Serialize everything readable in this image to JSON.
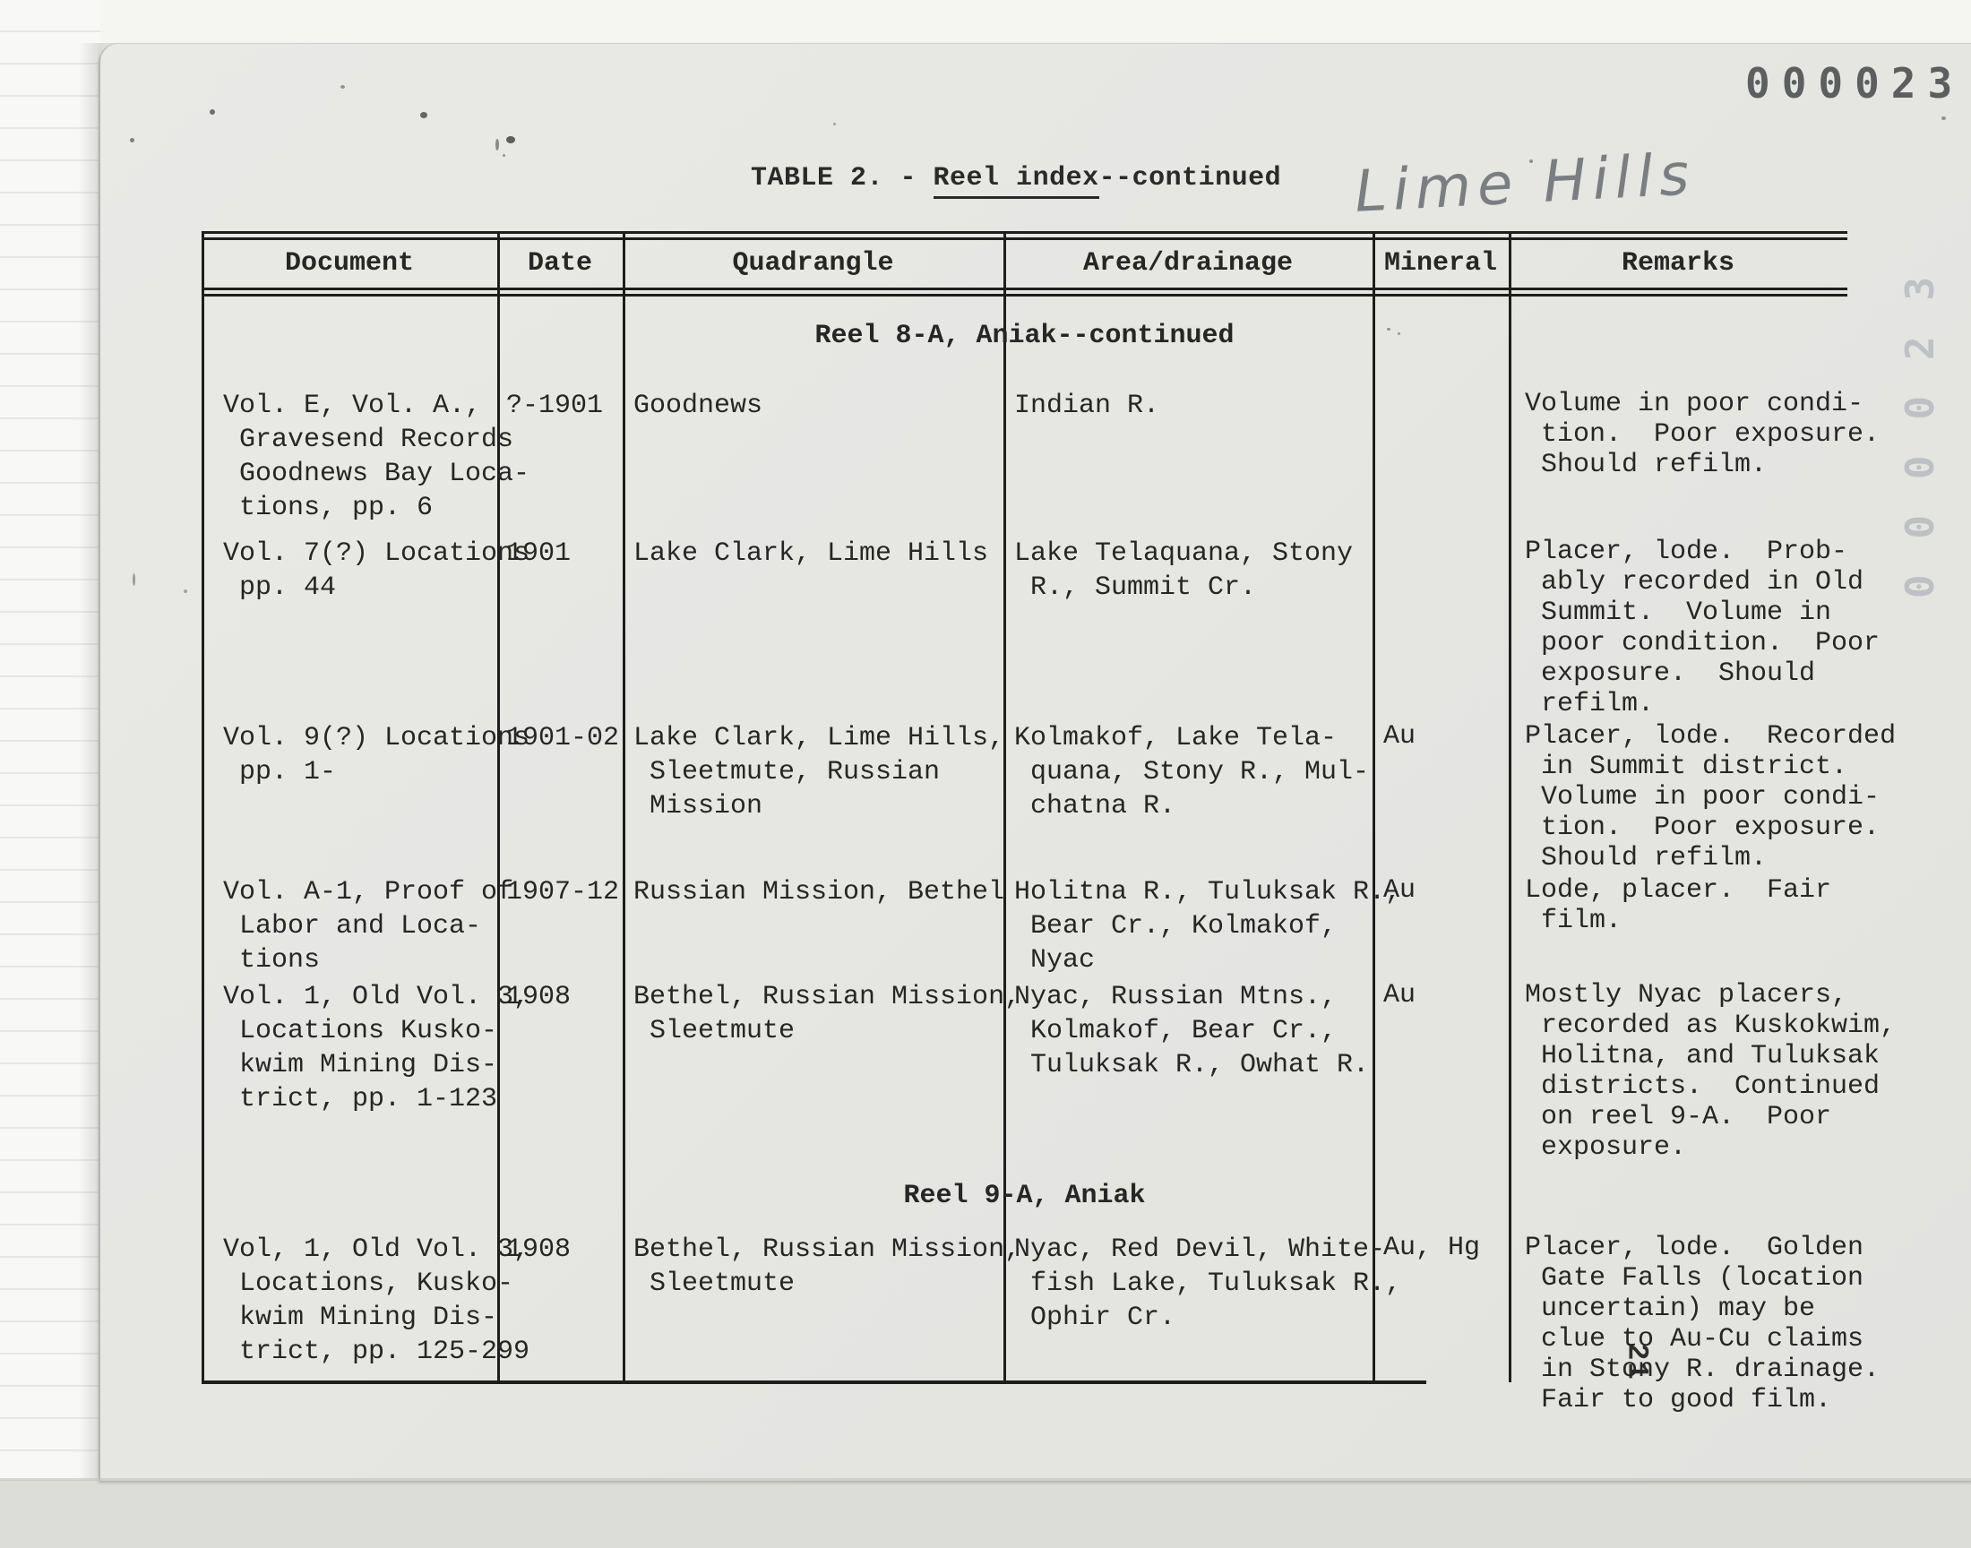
{
  "page": {
    "stamp": "000023",
    "ghost_stamp": "000023",
    "handwritten_note": "Lime Hills",
    "page_number": "21",
    "title_prefix": "TABLE 2. - ",
    "title_underlined": "Reel index",
    "title_suffix": "--continued"
  },
  "table": {
    "columns": [
      "Document",
      "Date",
      "Quadrangle",
      "Area/drainage",
      "Mineral",
      "Remarks"
    ],
    "sections": [
      {
        "header": "Reel 8-A, Aniak--continued",
        "rows": [
          {
            "document": [
              "Vol. E, Vol. A.,",
              " Gravesend Records",
              " Goodnews Bay Loca-",
              " tions, pp. 6"
            ],
            "date": "?-1901",
            "quadrangle": [
              "Goodnews"
            ],
            "area": [
              "Indian R."
            ],
            "mineral": "",
            "remarks": [
              "Volume in poor condi-",
              " tion.  Poor exposure.",
              " Should refilm."
            ]
          },
          {
            "document": [
              "Vol. 7(?) Locations",
              " pp. 44"
            ],
            "date": "1901",
            "quadrangle": [
              "Lake Clark, Lime Hills"
            ],
            "area": [
              "Lake Telaquana, Stony",
              " R., Summit Cr."
            ],
            "mineral": "",
            "remarks": [
              "Placer, lode.  Prob-",
              " ably recorded in Old",
              " Summit.  Volume in",
              " poor condition.  Poor",
              " exposure.  Should",
              " refilm."
            ]
          },
          {
            "document": [
              "Vol. 9(?) Locations",
              " pp. 1-"
            ],
            "date": "1901-02",
            "quadrangle": [
              "Lake Clark, Lime Hills,",
              " Sleetmute, Russian",
              " Mission"
            ],
            "area": [
              "Kolmakof, Lake Tela-",
              " quana, Stony R., Mul-",
              " chatna R."
            ],
            "mineral": "Au",
            "remarks": [
              "Placer, lode.  Recorded",
              " in Summit district.",
              " Volume in poor condi-",
              " tion.  Poor exposure.",
              " Should refilm."
            ]
          },
          {
            "document": [
              "Vol. A-1, Proof of",
              " Labor and Loca-",
              " tions"
            ],
            "date": "1907-12",
            "quadrangle": [
              "Russian Mission, Bethel"
            ],
            "area": [
              "Holitna R., Tuluksak R.,",
              " Bear Cr., Kolmakof,",
              " Nyac"
            ],
            "mineral": "Au",
            "remarks": [
              "Lode, placer.  Fair",
              " film."
            ]
          },
          {
            "document": [
              "Vol. 1, Old Vol. 3,",
              " Locations Kusko-",
              " kwim Mining Dis-",
              " trict, pp. 1-123"
            ],
            "date": "1908",
            "quadrangle": [
              "Bethel, Russian Mission,",
              " Sleetmute"
            ],
            "area": [
              "Nyac, Russian Mtns.,",
              " Kolmakof, Bear Cr.,",
              " Tuluksak R., Owhat R."
            ],
            "mineral": "Au",
            "remarks": [
              "Mostly Nyac placers,",
              " recorded as Kuskokwim,",
              " Holitna, and Tuluksak",
              " districts.  Continued",
              " on reel 9-A.  Poor",
              " exposure."
            ]
          }
        ]
      },
      {
        "header": "Reel 9-A, Aniak",
        "rows": [
          {
            "document": [
              "Vol, 1, Old Vol. 3,",
              " Locations, Kusko-",
              " kwim Mining Dis-",
              " trict, pp. 125-299"
            ],
            "date": "1908",
            "quadrangle": [
              "Bethel, Russian Mission,",
              " Sleetmute"
            ],
            "area": [
              "Nyac, Red Devil, White-",
              " fish Lake, Tuluksak R.,",
              " Ophir Cr."
            ],
            "mineral": "Au, Hg",
            "remarks": [
              "Placer, lode.  Golden",
              " Gate Falls (location",
              " uncertain) may be",
              " clue to Au-Cu claims",
              " in Stony R. drainage.",
              " Fair to good film."
            ]
          }
        ]
      }
    ]
  }
}
